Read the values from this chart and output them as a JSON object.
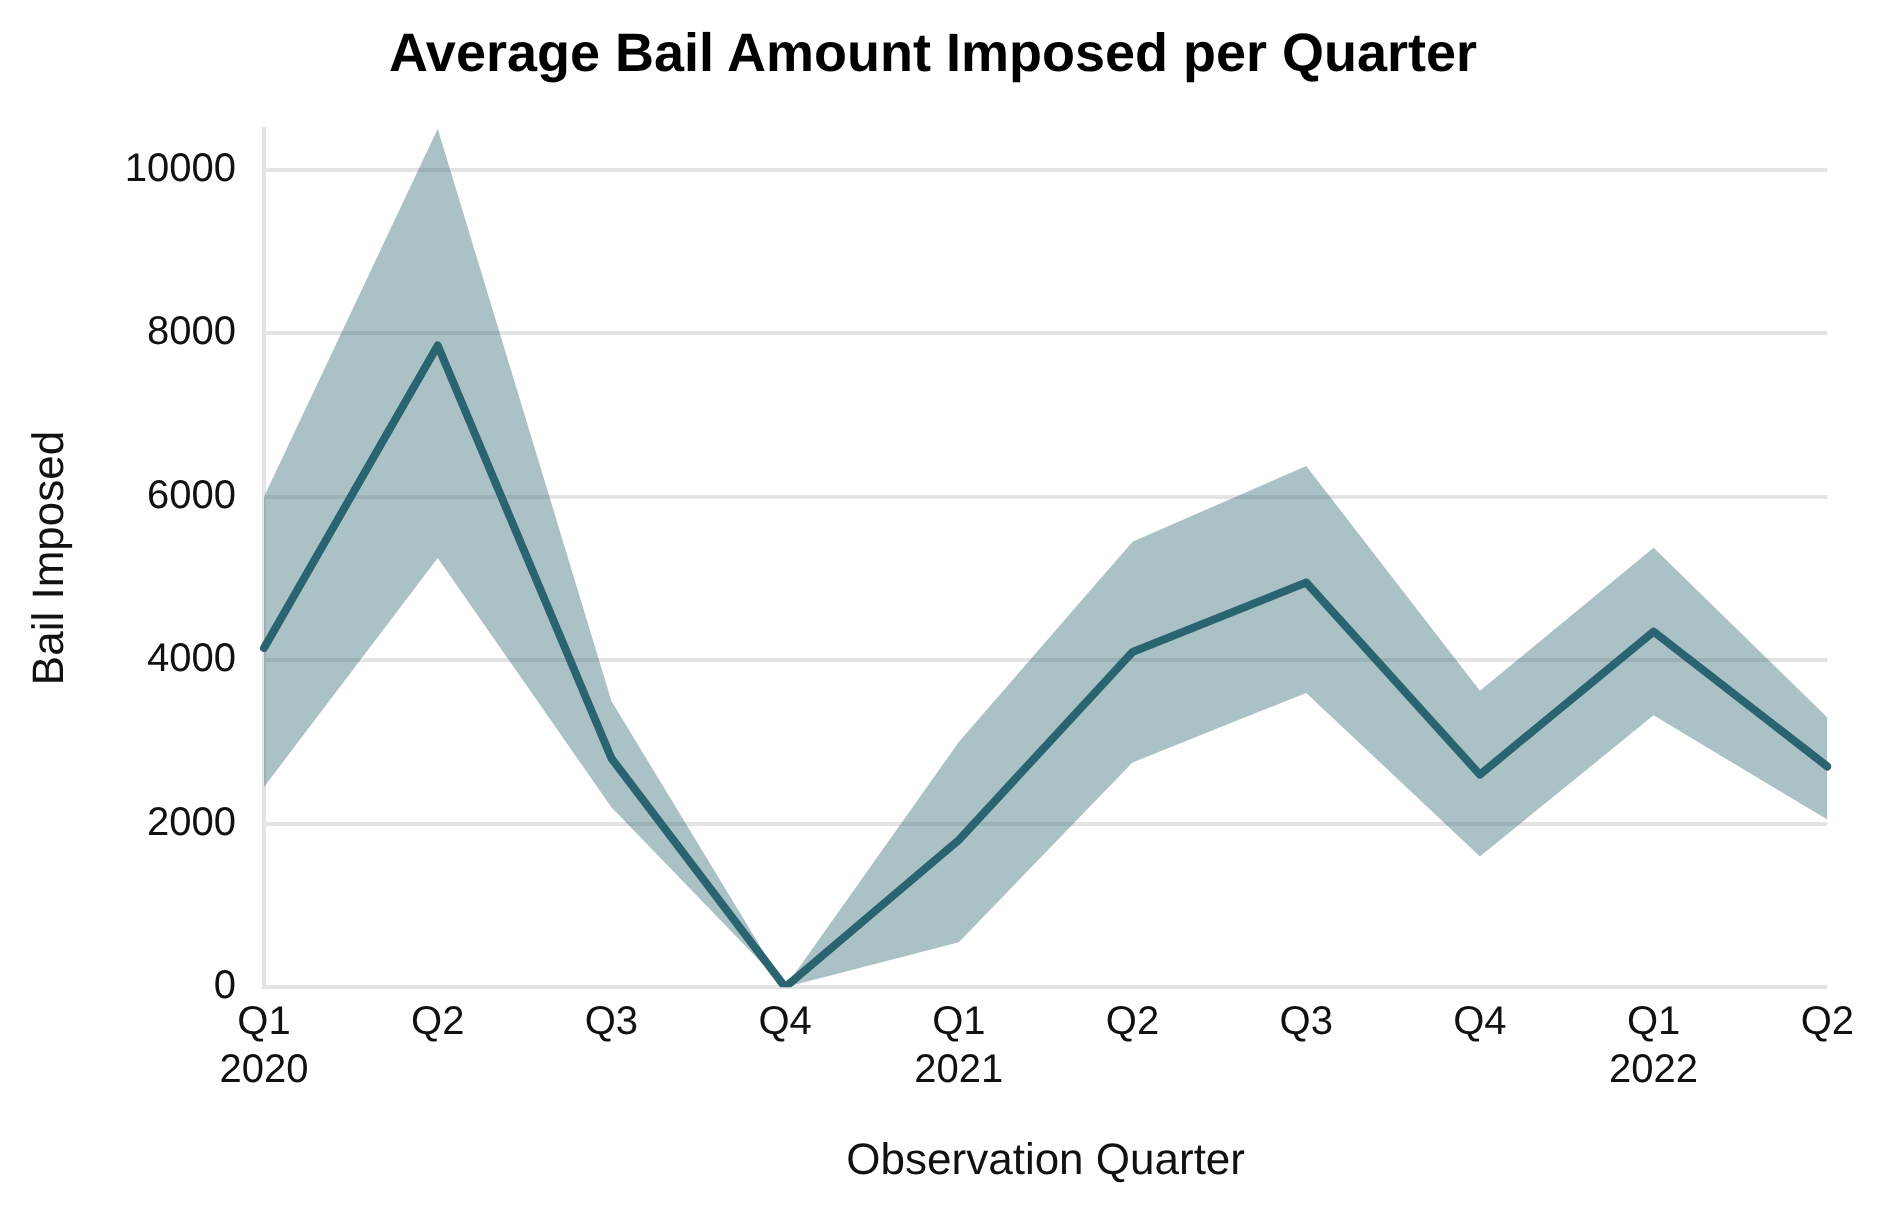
{
  "chart_data": {
    "type": "line",
    "title": "Average Bail Amount Imposed per Quarter",
    "xlabel": "Observation Quarter",
    "ylabel": "Bail Imposed",
    "categories": [
      "Q1\n2020",
      "Q2",
      "Q3",
      "Q4",
      "Q1\n2021",
      "Q2",
      "Q3",
      "Q4",
      "Q1\n2022",
      "Q2"
    ],
    "series": [
      {
        "color": "#2a6470",
        "values": [
          4150,
          7850,
          2800,
          0,
          1800,
          4100,
          4950,
          2600,
          4350,
          2700
        ],
        "lower": [
          2450,
          5250,
          2200,
          0,
          550,
          2750,
          3600,
          1600,
          3325,
          2050
        ],
        "upper": [
          6000,
          10500,
          3500,
          0,
          3000,
          5450,
          6375,
          3625,
          5375,
          3300
        ]
      }
    ],
    "ylim": [
      0,
      10500
    ],
    "yticks": [
      0,
      2000,
      4000,
      6000,
      8000,
      10000
    ],
    "grid": "y",
    "legend": false,
    "marker": "none",
    "line_style": "solid"
  }
}
